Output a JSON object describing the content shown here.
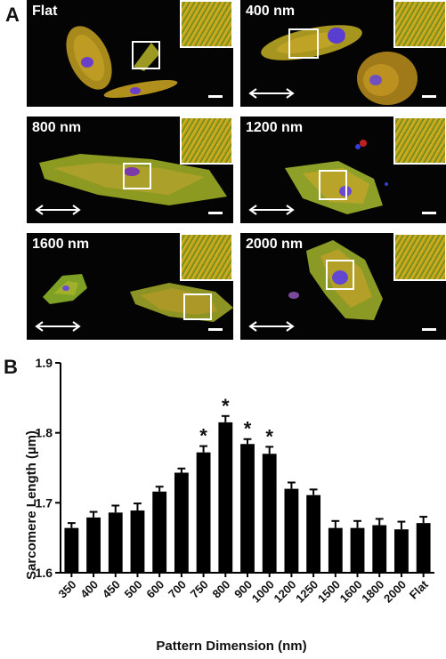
{
  "panel_a": {
    "letter": "A",
    "tiles": [
      {
        "label": "Flat"
      },
      {
        "label": "400 nm"
      },
      {
        "label": "800 nm"
      },
      {
        "label": "1200 nm"
      },
      {
        "label": "1600 nm"
      },
      {
        "label": "2000 nm"
      }
    ]
  },
  "panel_b": {
    "letter": "B"
  },
  "chart_data": {
    "type": "bar",
    "categories": [
      "350",
      "400",
      "450",
      "500",
      "600",
      "700",
      "750",
      "800",
      "900",
      "1000",
      "1200",
      "1250",
      "1500",
      "1600",
      "1800",
      "2000",
      "Flat"
    ],
    "values": [
      1.664,
      1.679,
      1.686,
      1.689,
      1.716,
      1.743,
      1.772,
      1.815,
      1.784,
      1.77,
      1.72,
      1.711,
      1.664,
      1.664,
      1.668,
      1.662,
      1.671
    ],
    "errors": [
      0.007,
      0.008,
      0.01,
      0.01,
      0.007,
      0.006,
      0.009,
      0.009,
      0.007,
      0.01,
      0.009,
      0.008,
      0.01,
      0.01,
      0.009,
      0.011,
      0.009
    ],
    "significant": [
      false,
      false,
      false,
      false,
      false,
      false,
      true,
      true,
      true,
      true,
      false,
      false,
      false,
      false,
      false,
      false,
      false
    ],
    "significance_marker": "*",
    "yticks": [
      "1.6",
      "1.7",
      "1.8",
      "1.9"
    ],
    "ylim": [
      1.6,
      1.9
    ],
    "xlabel": "Pattern Dimension (nm)",
    "ylabel": "Sarcomere  Length (µm)",
    "bar_color": "#000000",
    "grid": false
  }
}
